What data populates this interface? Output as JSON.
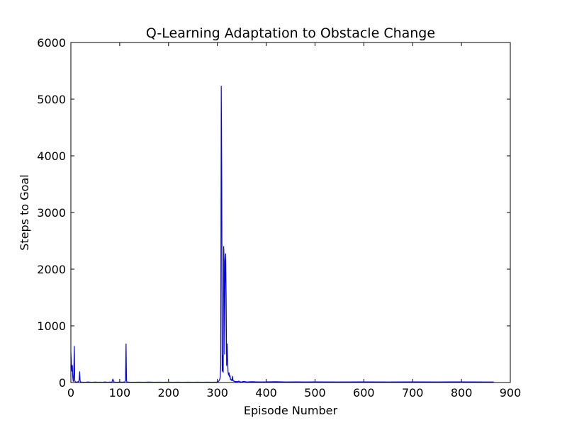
{
  "chart_data": {
    "type": "line",
    "title": "Q-Learning Adaptation to Obstacle Change",
    "xlabel": "Episode Number",
    "ylabel": "Steps to Goal",
    "xlim": [
      0,
      900
    ],
    "ylim": [
      0,
      6000
    ],
    "xticks": [
      0,
      100,
      200,
      300,
      400,
      500,
      600,
      700,
      800,
      900
    ],
    "yticks": [
      0,
      1000,
      2000,
      3000,
      4000,
      5000,
      6000
    ],
    "grid": false,
    "line_color": "#0000ff",
    "series": [
      {
        "x": [
          0,
          1,
          2,
          3,
          4,
          5,
          6,
          7,
          8,
          9,
          10,
          12,
          14,
          16,
          17,
          18,
          19,
          20,
          22,
          25,
          30,
          35,
          40,
          45,
          50,
          55,
          60,
          65,
          70,
          75,
          80,
          84,
          85,
          86,
          87,
          88,
          90,
          95,
          100,
          105,
          110,
          111,
          112,
          113,
          114,
          115,
          116,
          117,
          120,
          130,
          140,
          150,
          160,
          170,
          180,
          190,
          200,
          210,
          220,
          230,
          240,
          250,
          260,
          270,
          280,
          290,
          300,
          302,
          304,
          305,
          306,
          307,
          308,
          309,
          310,
          311,
          312,
          313,
          314,
          315,
          316,
          317,
          318,
          319,
          320,
          321,
          322,
          323,
          324,
          325,
          326,
          327,
          328,
          329,
          330,
          331,
          332,
          333,
          334,
          335,
          336,
          337,
          338,
          339,
          340,
          342,
          344,
          346,
          348,
          350,
          355,
          360,
          370,
          380,
          390,
          400,
          420,
          440,
          460,
          480,
          500,
          550,
          600,
          650,
          700,
          750,
          800,
          850,
          866
        ],
        "y": [
          520,
          330,
          200,
          300,
          80,
          20,
          160,
          640,
          30,
          15,
          10,
          8,
          12,
          20,
          50,
          190,
          20,
          10,
          8,
          6,
          5,
          10,
          6,
          5,
          8,
          5,
          6,
          5,
          10,
          5,
          8,
          6,
          30,
          60,
          40,
          10,
          6,
          5,
          8,
          6,
          10,
          20,
          40,
          680,
          30,
          10,
          5,
          8,
          6,
          5,
          6,
          5,
          8,
          5,
          6,
          5,
          6,
          5,
          6,
          5,
          6,
          5,
          6,
          5,
          6,
          5,
          8,
          15,
          40,
          60,
          100,
          300,
          5230,
          3600,
          200,
          480,
          180,
          2400,
          2130,
          500,
          2140,
          2270,
          1500,
          300,
          680,
          400,
          180,
          130,
          170,
          100,
          120,
          50,
          60,
          40,
          30,
          110,
          40,
          30,
          20,
          25,
          15,
          20,
          12,
          15,
          20,
          12,
          25,
          15,
          10,
          12,
          20,
          10,
          15,
          12,
          10,
          12,
          15,
          10,
          12,
          10,
          12,
          10,
          12,
          10,
          12,
          10,
          12,
          10,
          10
        ]
      }
    ]
  }
}
